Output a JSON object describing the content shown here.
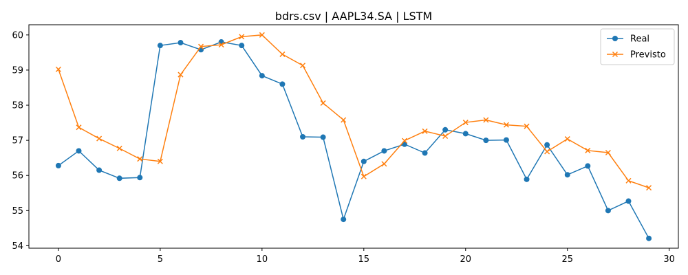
{
  "chart_data": {
    "type": "line",
    "title": "bdrs.csv | AAPL34.SA | LSTM",
    "xlabel": "",
    "ylabel": "",
    "xlim": [
      -1.45,
      30.45
    ],
    "ylim": [
      53.93,
      60.29
    ],
    "xticks": [
      0,
      5,
      10,
      15,
      20,
      25,
      30
    ],
    "yticks": [
      54,
      55,
      56,
      57,
      58,
      59,
      60
    ],
    "grid": false,
    "legend_position": "top-right",
    "x": [
      0,
      1,
      2,
      3,
      4,
      5,
      6,
      7,
      8,
      9,
      10,
      11,
      12,
      13,
      14,
      15,
      16,
      17,
      18,
      19,
      20,
      21,
      22,
      23,
      24,
      25,
      26,
      27,
      28,
      29
    ],
    "series": [
      {
        "name": "Real",
        "color": "#1f77b4",
        "marker": "circle",
        "values": [
          56.28,
          56.7,
          56.15,
          55.92,
          55.94,
          59.7,
          59.78,
          59.58,
          59.8,
          59.7,
          58.84,
          58.6,
          57.1,
          57.09,
          54.75,
          56.4,
          56.7,
          56.89,
          56.64,
          57.3,
          57.19,
          57.0,
          57.01,
          55.89,
          56.87,
          56.02,
          56.27,
          55.0,
          55.27,
          54.21
        ]
      },
      {
        "name": "Previsto",
        "color": "#ff7f0e",
        "marker": "x",
        "values": [
          59.02,
          57.37,
          57.05,
          56.77,
          56.47,
          56.4,
          58.87,
          59.67,
          59.72,
          59.95,
          60.0,
          59.45,
          59.13,
          58.06,
          57.58,
          55.97,
          56.33,
          56.99,
          57.26,
          57.12,
          57.51,
          57.58,
          57.44,
          57.4,
          56.68,
          57.04,
          56.71,
          56.65,
          55.85,
          55.65
        ]
      }
    ]
  }
}
